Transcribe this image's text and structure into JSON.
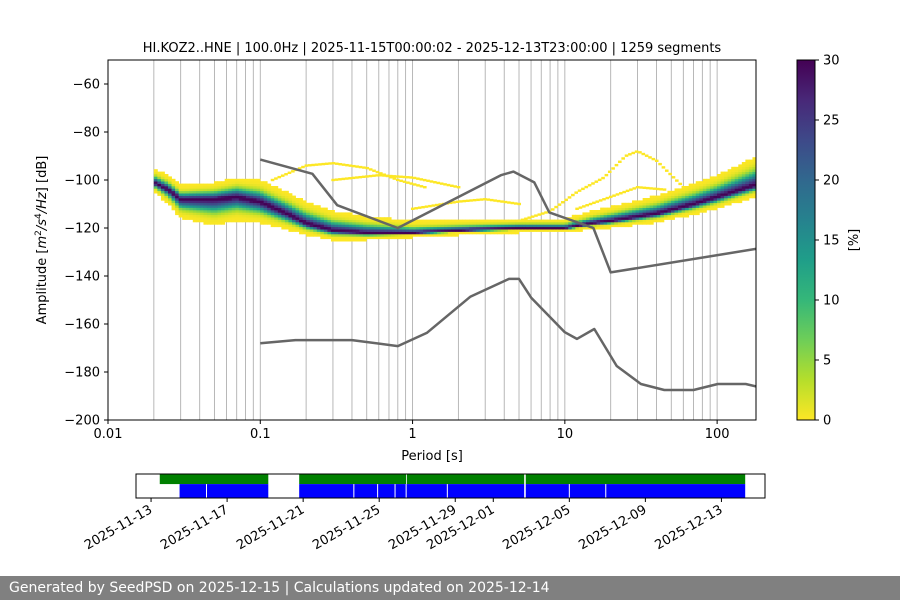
{
  "chart_data": [
    {
      "type": "heatmap",
      "title": "HI.KOZ2..HNE | 100.0Hz | 2025-11-15T00:00:02 - 2025-12-13T23:00:00 | 1259 segments",
      "xlabel": "Period [s]",
      "ylabel_parts": [
        "Amplitude [",
        "m",
        "2",
        "/",
        "s",
        "4",
        "/",
        "Hz",
        "] [dB]"
      ],
      "x_scale": "log",
      "xlim": [
        0.01,
        180
      ],
      "ylim": [
        -200,
        -50
      ],
      "x_ticks": [
        {
          "value": 0.01,
          "label": "0.01"
        },
        {
          "value": 0.1,
          "label": "0.1"
        },
        {
          "value": 1,
          "label": "1"
        },
        {
          "value": 10,
          "label": "10"
        },
        {
          "value": 100,
          "label": "100"
        }
      ],
      "y_ticks": [
        {
          "value": -60,
          "label": "−60"
        },
        {
          "value": -80,
          "label": "−80"
        },
        {
          "value": -100,
          "label": "−100"
        },
        {
          "value": -120,
          "label": "−120"
        },
        {
          "value": -140,
          "label": "−140"
        },
        {
          "value": -160,
          "label": "−160"
        },
        {
          "value": -180,
          "label": "−180"
        },
        {
          "value": -200,
          "label": "−200"
        }
      ],
      "grid_periods": [
        0.02,
        0.03,
        0.04,
        0.05,
        0.06,
        0.07,
        0.08,
        0.09,
        0.1,
        0.2,
        0.3,
        0.4,
        0.5,
        0.6,
        0.7,
        0.8,
        0.9,
        1,
        2,
        3,
        4,
        5,
        6,
        7,
        8,
        9,
        10,
        20,
        30,
        40,
        50,
        60,
        70,
        80,
        90,
        100
      ],
      "colorbar": {
        "label": "[%]",
        "range": [
          0,
          30
        ],
        "ticks": [
          {
            "value": 0,
            "label": "0"
          },
          {
            "value": 5,
            "label": "5"
          },
          {
            "value": 10,
            "label": "10"
          },
          {
            "value": 15,
            "label": "15"
          },
          {
            "value": 20,
            "label": "20"
          },
          {
            "value": 25,
            "label": "25"
          },
          {
            "value": 30,
            "label": "30"
          }
        ],
        "colormap_stops": [
          "#fde725",
          "#b5de2b",
          "#6ece58",
          "#35b779",
          "#1f9e89",
          "#26828e",
          "#31688e",
          "#3e4989",
          "#482878",
          "#440154"
        ]
      },
      "mode_curve": [
        {
          "period": 0.02,
          "db": -101
        },
        {
          "period": 0.025,
          "db": -104
        },
        {
          "period": 0.03,
          "db": -108
        },
        {
          "period": 0.05,
          "db": -108
        },
        {
          "period": 0.07,
          "db": -107
        },
        {
          "period": 0.1,
          "db": -109
        },
        {
          "period": 0.15,
          "db": -114
        },
        {
          "period": 0.2,
          "db": -118
        },
        {
          "period": 0.3,
          "db": -121
        },
        {
          "period": 0.5,
          "db": -122
        },
        {
          "period": 1,
          "db": -122
        },
        {
          "period": 2,
          "db": -121
        },
        {
          "period": 5,
          "db": -120
        },
        {
          "period": 10,
          "db": -120
        },
        {
          "period": 15,
          "db": -118
        },
        {
          "period": 20,
          "db": -117
        },
        {
          "period": 40,
          "db": -114
        },
        {
          "period": 70,
          "db": -110
        },
        {
          "period": 100,
          "db": -107
        },
        {
          "period": 180,
          "db": -102
        }
      ],
      "band_spread": [
        {
          "period": 0.02,
          "up": 5,
          "down": 3
        },
        {
          "period": 0.03,
          "up": 5,
          "down": 7
        },
        {
          "period": 0.05,
          "up": 6,
          "down": 10
        },
        {
          "period": 0.1,
          "up": 8,
          "down": 8
        },
        {
          "period": 0.2,
          "up": 8,
          "down": 4
        },
        {
          "period": 0.5,
          "up": 6,
          "down": 2
        },
        {
          "period": 1,
          "up": 4,
          "down": 1
        },
        {
          "period": 5,
          "up": 3,
          "down": 1
        },
        {
          "period": 10,
          "up": 3,
          "down": 1
        },
        {
          "period": 20,
          "up": 5,
          "down": 2
        },
        {
          "period": 50,
          "up": 7,
          "down": 3
        },
        {
          "period": 100,
          "up": 8,
          "down": 4
        },
        {
          "period": 180,
          "up": 11,
          "down": 4
        }
      ],
      "scatter_curves": [
        [
          {
            "period": 0.12,
            "db": -100
          },
          {
            "period": 0.2,
            "db": -94
          },
          {
            "period": 0.3,
            "db": -93
          },
          {
            "period": 0.5,
            "db": -95
          },
          {
            "period": 0.8,
            "db": -100
          },
          {
            "period": 1.2,
            "db": -103
          }
        ],
        [
          {
            "period": 0.3,
            "db": -100
          },
          {
            "period": 0.6,
            "db": -98
          },
          {
            "period": 1,
            "db": -99
          },
          {
            "period": 2,
            "db": -103
          }
        ],
        [
          {
            "period": 1,
            "db": -112
          },
          {
            "period": 2,
            "db": -109
          },
          {
            "period": 3,
            "db": -108
          },
          {
            "period": 5,
            "db": -110
          }
        ],
        [
          {
            "period": 5,
            "db": -117
          },
          {
            "period": 8,
            "db": -113
          },
          {
            "period": 12,
            "db": -105
          },
          {
            "period": 18,
            "db": -99
          },
          {
            "period": 25,
            "db": -90
          },
          {
            "period": 30,
            "db": -88
          },
          {
            "period": 40,
            "db": -92
          },
          {
            "period": 60,
            "db": -103
          }
        ],
        [
          {
            "period": 12,
            "db": -112
          },
          {
            "period": 20,
            "db": -107
          },
          {
            "period": 30,
            "db": -103
          },
          {
            "period": 45,
            "db": -104
          }
        ]
      ],
      "model_curves": [
        {
          "points": [
            {
              "period": 0.1,
              "db": -91.5
            },
            {
              "period": 0.22,
              "db": -97.4
            },
            {
              "period": 0.32,
              "db": -110.5
            },
            {
              "period": 0.8,
              "db": -120
            },
            {
              "period": 3.8,
              "db": -98
            },
            {
              "period": 4.6,
              "db": -96.5
            },
            {
              "period": 6.3,
              "db": -101
            },
            {
              "period": 7.9,
              "db": -113.5
            },
            {
              "period": 15.4,
              "db": -120
            },
            {
              "period": 20,
              "db": -138.5
            },
            {
              "period": 180,
              "db": -128.7
            }
          ]
        },
        {
          "points": [
            {
              "period": 0.1,
              "db": -168
            },
            {
              "period": 0.17,
              "db": -166.7
            },
            {
              "period": 0.4,
              "db": -166.7
            },
            {
              "period": 0.8,
              "db": -169.2
            },
            {
              "period": 1.24,
              "db": -163.7
            },
            {
              "period": 2.4,
              "db": -148.6
            },
            {
              "period": 4.3,
              "db": -141.2
            },
            {
              "period": 5.0,
              "db": -141.2
            },
            {
              "period": 6.0,
              "db": -149
            },
            {
              "period": 10,
              "db": -163.4
            },
            {
              "period": 12,
              "db": -166.2
            },
            {
              "period": 15.6,
              "db": -162.1
            },
            {
              "period": 21.9,
              "db": -177.5
            },
            {
              "period": 31.6,
              "db": -185
            },
            {
              "period": 45,
              "db": -187.5
            },
            {
              "period": 70,
              "db": -187.5
            },
            {
              "period": 101,
              "db": -185
            },
            {
              "period": 154,
              "db": -185
            },
            {
              "period": 180,
              "db": -186
            }
          ]
        }
      ]
    },
    {
      "type": "timeline",
      "x_range": [
        "2025-11-12T05:00",
        "2025-12-15T07:00"
      ],
      "x_ticks": [
        "2025-11-13",
        "2025-11-17",
        "2025-11-21",
        "2025-11-25",
        "2025-11-29",
        "2025-12-01",
        "2025-12-05",
        "2025-12-09",
        "2025-12-13"
      ],
      "green_segments": [
        [
          "2025-11-13T11:00",
          "2025-11-19T04:00"
        ],
        [
          "2025-11-20T19:00",
          "2025-11-26T10:00"
        ],
        [
          "2025-11-26T11:00",
          "2025-12-02T15:00"
        ],
        [
          "2025-12-02T17:00",
          "2025-12-14T06:00"
        ]
      ],
      "blue_segments": [
        [
          "2025-11-14T12:00",
          "2025-11-19T04:00"
        ],
        [
          "2025-11-20T19:00",
          "2025-12-02T15:00"
        ],
        [
          "2025-12-02T17:00",
          "2025-12-14T06:00"
        ]
      ],
      "blue_gaps": [
        "2025-11-15T22:00",
        "2025-11-23T16:00",
        "2025-11-24T22:00",
        "2025-11-25T20:00",
        "2025-11-26T10:00",
        "2025-11-28T14:00",
        "2025-12-05T00:00",
        "2025-12-06T22:00"
      ],
      "colors": {
        "green": "#008000",
        "blue": "#0000ff"
      }
    }
  ],
  "footer": {
    "text": "Generated by SeedPSD on 2025-12-15 | Calculations updated on 2025-12-14"
  }
}
